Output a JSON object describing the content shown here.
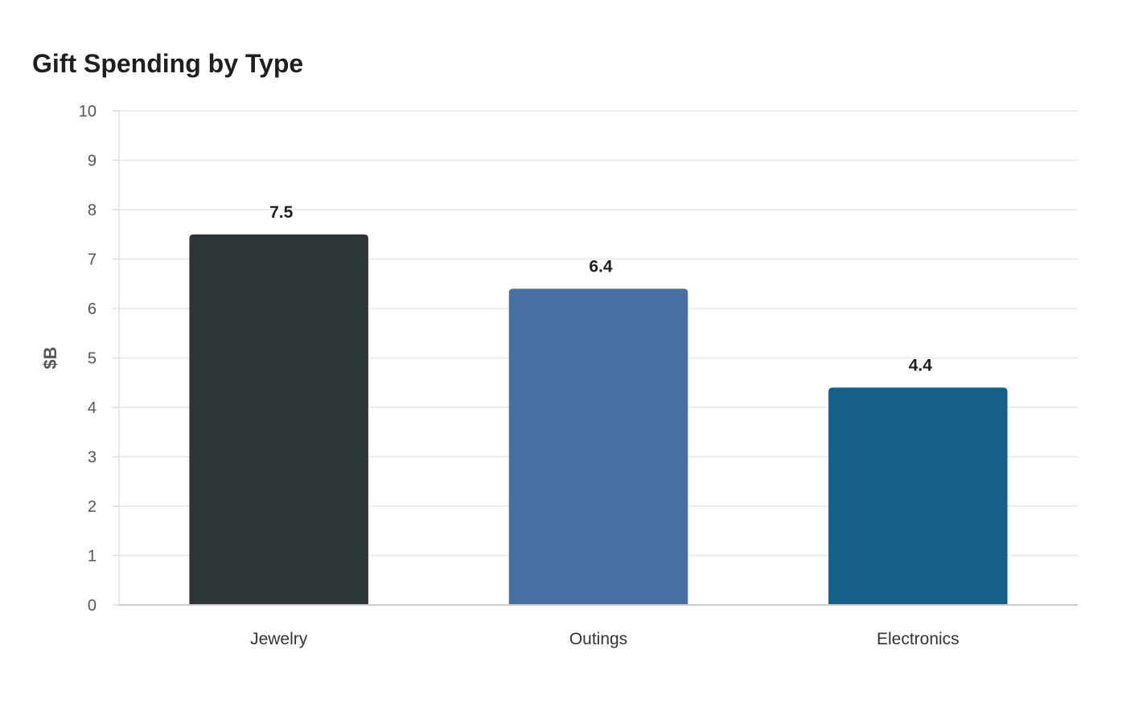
{
  "chart_data": {
    "type": "bar",
    "title": "Gift Spending by Type",
    "xlabel": "",
    "ylabel": "$B",
    "categories": [
      "Jewelry",
      "Outings",
      "Electronics"
    ],
    "values": [
      7.5,
      6.4,
      4.4
    ],
    "value_labels": [
      "7.5",
      "6.4",
      "4.4"
    ],
    "colors": [
      "#2d3538",
      "#4a6fa5",
      "#166088"
    ],
    "ylim": [
      0,
      10
    ],
    "yticks": [
      0,
      1,
      2,
      3,
      4,
      5,
      6,
      7,
      8,
      9,
      10
    ],
    "grid": true,
    "legend": "none"
  }
}
